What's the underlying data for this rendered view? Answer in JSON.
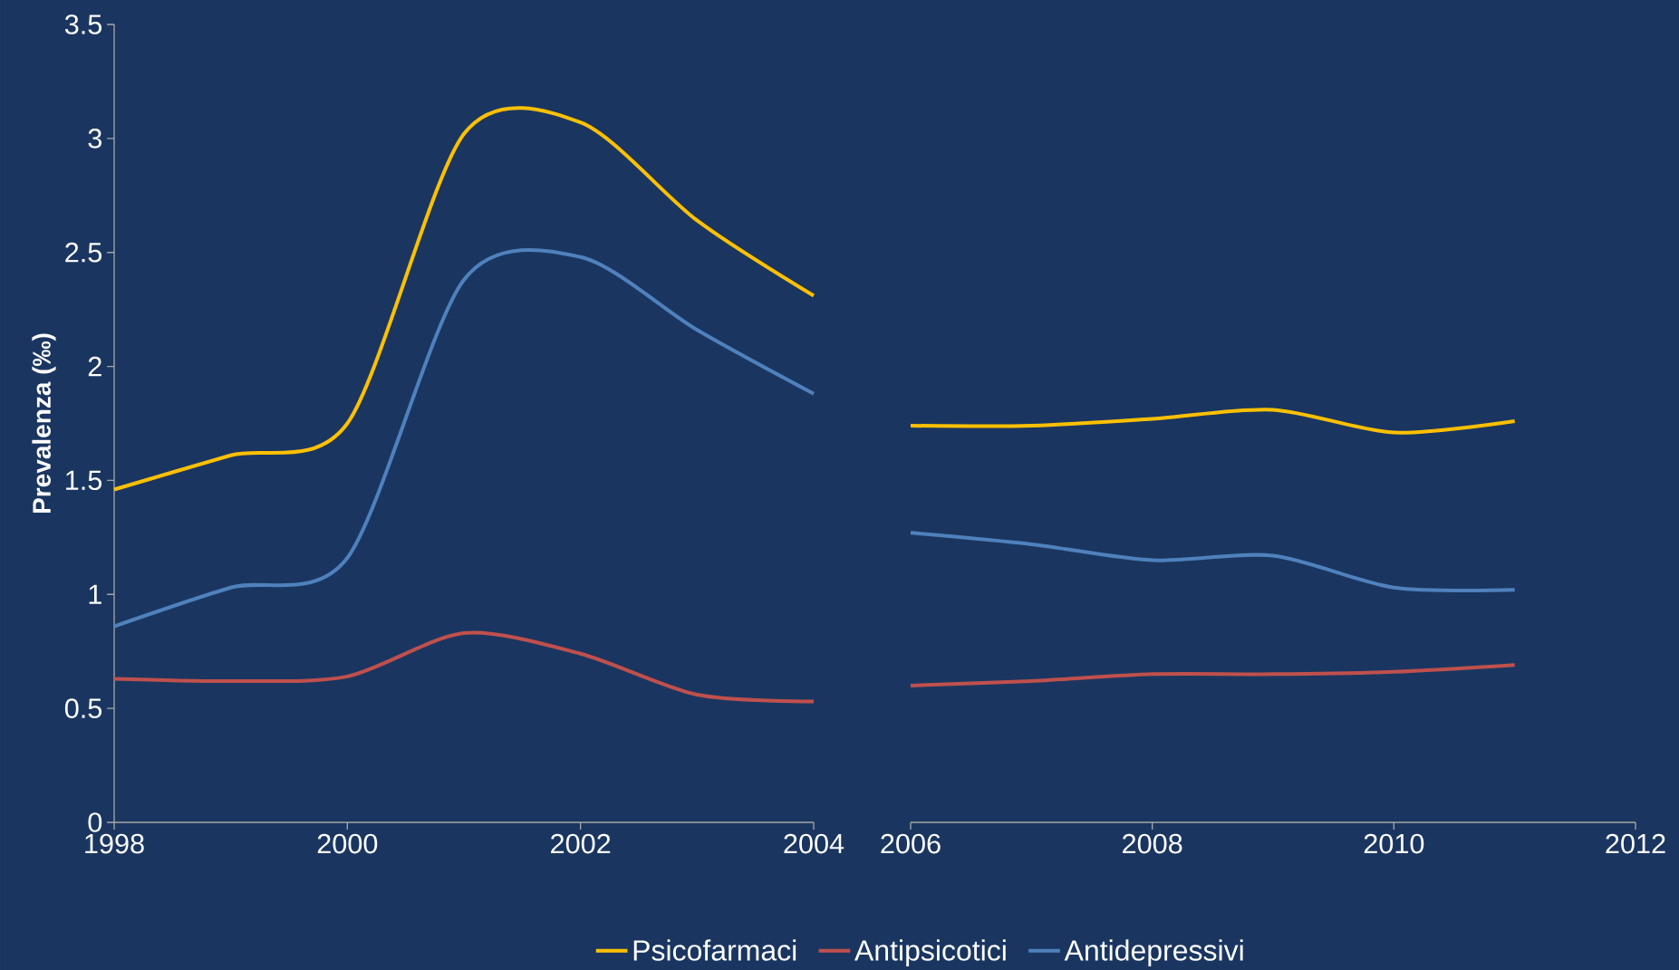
{
  "chart_data": [
    {
      "type": "line",
      "ylabel": "Prevalenza (‰)",
      "x": [
        1998,
        1999,
        2000,
        2001,
        2002,
        2003,
        2004
      ],
      "xlim": [
        1998,
        2004
      ],
      "xticks": [
        1998,
        2000,
        2002,
        2004
      ],
      "ylim": [
        0,
        3.5
      ],
      "yticks": [
        0,
        0.5,
        1,
        1.5,
        2,
        2.5,
        3,
        3.5
      ],
      "legend": "bottom",
      "series": [
        {
          "name": "Psicofarmaci",
          "color": "#ffc000",
          "values": [
            1.46,
            1.61,
            1.75,
            3.02,
            3.07,
            2.64,
            2.31
          ]
        },
        {
          "name": "Antipsicotici",
          "color": "#c0504d",
          "values": [
            0.63,
            0.62,
            0.64,
            0.83,
            0.74,
            0.56,
            0.53
          ]
        },
        {
          "name": "Antidepressivi",
          "color": "#4f81bd",
          "values": [
            0.86,
            1.03,
            1.16,
            2.38,
            2.48,
            2.16,
            1.88
          ]
        }
      ]
    },
    {
      "type": "line",
      "x": [
        2006,
        2007,
        2008,
        2009,
        2010,
        2011
      ],
      "xlim": [
        2006,
        2012
      ],
      "xticks": [
        2006,
        2008,
        2010,
        2012
      ],
      "ylim": [
        0,
        3.5
      ],
      "tick_labels": "x",
      "series": [
        {
          "color": "#ffc000",
          "values": [
            1.74,
            1.74,
            1.77,
            1.81,
            1.71,
            1.76
          ]
        },
        {
          "color": "#c0504d",
          "values": [
            0.6,
            0.62,
            0.65,
            0.65,
            0.66,
            0.69
          ]
        },
        {
          "color": "#4f81bd",
          "values": [
            1.27,
            1.22,
            1.15,
            1.17,
            1.03,
            1.02
          ]
        }
      ]
    }
  ]
}
